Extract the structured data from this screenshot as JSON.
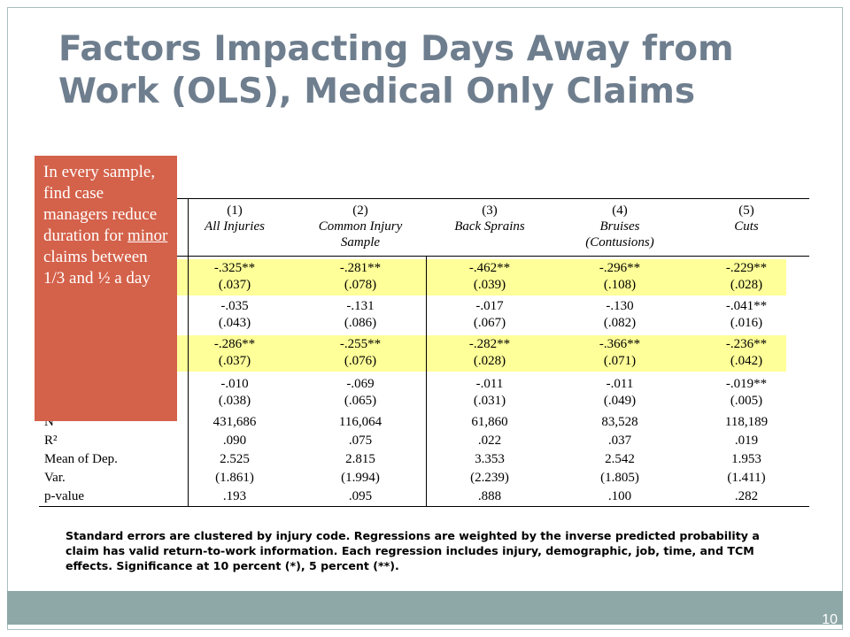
{
  "title": "Factors Impacting Days Away from Work (OLS), Medical Only Claims",
  "callout": {
    "text_before": "In every sample, find case managers reduce duration for ",
    "text_underlined": "minor",
    "text_after": " claims between 1/3 and ½ a day"
  },
  "table": {
    "columns": [
      {
        "num": "(1)",
        "label1": "All Injuries",
        "label2": ""
      },
      {
        "num": "(2)",
        "label1": "Common Injury",
        "label2": "Sample"
      },
      {
        "num": "(3)",
        "label1": "Back Sprains",
        "label2": ""
      },
      {
        "num": "(4)",
        "label1": "Bruises",
        "label2": "(Contusions)"
      },
      {
        "num": "(5)",
        "label1": "Cuts",
        "label2": ""
      }
    ],
    "coef_rows": [
      {
        "coef": [
          "-.325**",
          "-.281**",
          "-.462**",
          "-.296**",
          "-.229**"
        ],
        "se": [
          "(.037)",
          "(.078)",
          "(.039)",
          "(.108)",
          "(.028)"
        ],
        "highlight": true
      },
      {
        "coef": [
          "-.035",
          "-.131",
          "-.017",
          "-.130",
          "-.041**"
        ],
        "se": [
          "(.043)",
          "(.086)",
          "(.067)",
          "(.082)",
          "(.016)"
        ],
        "highlight": false
      },
      {
        "coef": [
          "-.286**",
          "-.255**",
          "-.282**",
          "-.366**",
          "-.236**"
        ],
        "se": [
          "(.037)",
          "(.076)",
          "(.028)",
          "(.071)",
          "(.042)"
        ],
        "highlight": true
      },
      {
        "coef": [
          "-.010",
          "-.069",
          "-.011",
          "-.011",
          "-.019**"
        ],
        "se": [
          "(.038)",
          "(.065)",
          "(.031)",
          "(.049)",
          "(.005)"
        ],
        "highlight": false
      }
    ],
    "stat_rows": [
      {
        "label": "N",
        "values": [
          "431,686",
          "116,064",
          "61,860",
          "83,528",
          "118,189"
        ]
      },
      {
        "label": "R²",
        "values": [
          ".090",
          ".075",
          ".022",
          ".037",
          ".019"
        ]
      },
      {
        "label": "Mean of Dep.",
        "values": [
          "2.525",
          "2.815",
          "3.353",
          "2.542",
          "1.953"
        ]
      },
      {
        "label": "Var.",
        "values": [
          "(1.861)",
          "(1.994)",
          "(2.239)",
          "(1.805)",
          "(1.411)"
        ]
      },
      {
        "label": "p-value",
        "values": [
          ".193",
          ".095",
          ".888",
          ".100",
          ".282"
        ]
      }
    ]
  },
  "note": "Standard errors are clustered by injury code.  Regressions are weighted by the inverse predicted probability a claim has valid return-to-work information.  Each regression includes injury, demographic, job, time, and TCM effects. Significance at 10 percent (*), 5 percent (**).",
  "slide_number": "10",
  "colors": {
    "title": "#6e7e8e",
    "callout_bg": "#d4614a",
    "highlight": "#ffff99",
    "footer": "#8ea7a7"
  }
}
